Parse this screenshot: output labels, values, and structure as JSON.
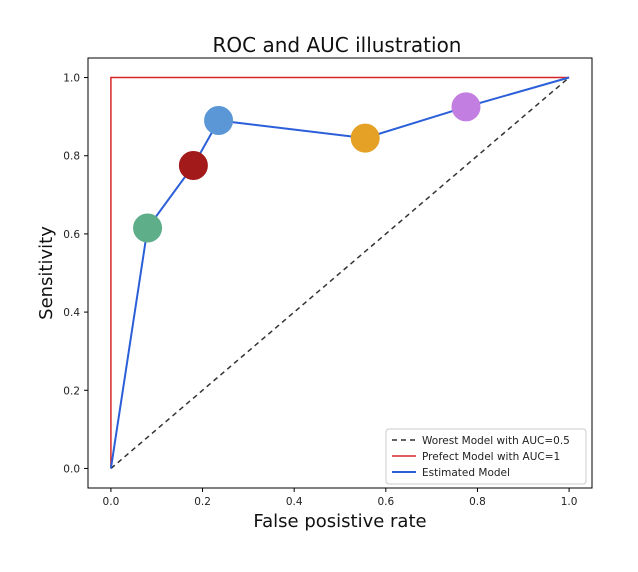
{
  "chart_data": {
    "type": "line",
    "title": "ROC and AUC illustration",
    "xlabel": "False posistive rate",
    "ylabel": "Sensitivity",
    "xlim": [
      -0.05,
      1.05
    ],
    "ylim": [
      -0.05,
      1.05
    ],
    "xticks": [
      "0.0",
      "0.2",
      "0.4",
      "0.6",
      "0.8",
      "1.0"
    ],
    "yticks": [
      "0.0",
      "0.2",
      "0.4",
      "0.6",
      "0.8",
      "1.0"
    ],
    "grid": false,
    "legend_position": "bottom-right",
    "series": [
      {
        "name": "Worest Model with AUC=0.5",
        "style": "dashed",
        "color": "#333333",
        "x": [
          0,
          1
        ],
        "y": [
          0,
          1
        ]
      },
      {
        "name": "Prefect Model with AUC=1",
        "style": "solid",
        "color": "#d62728",
        "x": [
          0,
          0,
          1
        ],
        "y": [
          0,
          1,
          1
        ]
      },
      {
        "name": "Estimated Model",
        "style": "solid",
        "color": "#2b5fd9",
        "x": [
          0,
          0.08,
          0.18,
          0.235,
          0.555,
          0.775,
          1
        ],
        "y": [
          0,
          0.615,
          0.775,
          0.89,
          0.845,
          0.925,
          1
        ]
      }
    ],
    "markers": [
      {
        "x": 0.08,
        "y": 0.615,
        "color": "#5fae8a"
      },
      {
        "x": 0.18,
        "y": 0.775,
        "color": "#a31a1a"
      },
      {
        "x": 0.235,
        "y": 0.89,
        "color": "#5b96d6"
      },
      {
        "x": 0.555,
        "y": 0.845,
        "color": "#e5a126"
      },
      {
        "x": 0.775,
        "y": 0.925,
        "color": "#c27ee0"
      }
    ]
  }
}
